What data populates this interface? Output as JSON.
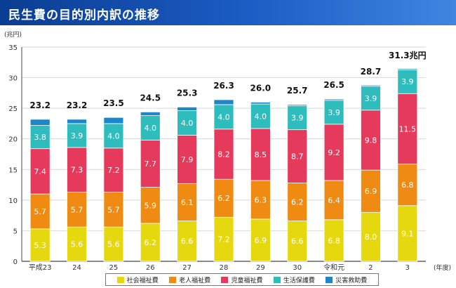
{
  "header": {
    "title": "民生費の目的別内訳の推移"
  },
  "chart_data": {
    "type": "bar",
    "stacked": true,
    "title": "民生費の目的別内訳の推移",
    "ylabel": "(兆円)",
    "xlabel": "(年度)",
    "ylim": [
      0,
      35
    ],
    "yticks": [
      0,
      5,
      10,
      15,
      20,
      25,
      30,
      35
    ],
    "grid": true,
    "categories": [
      "平成23",
      "24",
      "25",
      "26",
      "27",
      "28",
      "29",
      "30",
      "令和元",
      "2",
      "3"
    ],
    "series": [
      {
        "name": "社会福祉費",
        "color": "#e6d80f",
        "label_color": "#ffffff",
        "values": [
          5.3,
          5.6,
          5.6,
          6.2,
          6.6,
          7.2,
          6.9,
          6.6,
          6.8,
          8.0,
          9.1
        ]
      },
      {
        "name": "老人福祉費",
        "color": "#ef8a12",
        "label_color": "#ffffff",
        "values": [
          5.7,
          5.7,
          5.7,
          5.9,
          6.1,
          6.2,
          6.3,
          6.2,
          6.4,
          6.9,
          6.8
        ]
      },
      {
        "name": "児童福祉費",
        "color": "#e63a5c",
        "label_color": "#ffffff",
        "values": [
          7.4,
          7.3,
          7.2,
          7.7,
          7.9,
          8.2,
          8.5,
          8.7,
          9.2,
          9.8,
          11.5
        ]
      },
      {
        "name": "生活保護費",
        "color": "#2fbcbc",
        "label_color": "#ffffff",
        "values": [
          3.8,
          3.9,
          4.0,
          4.0,
          4.0,
          4.0,
          4.0,
          3.9,
          3.9,
          3.9,
          3.9
        ]
      },
      {
        "name": "災害救助費",
        "color": "#1d86c9",
        "label_color": "#ffffff",
        "values": [
          1.0,
          0.7,
          1.0,
          0.6,
          0.6,
          0.8,
          0.3,
          0.2,
          0.2,
          0.1,
          0.0
        ]
      }
    ],
    "totals": [
      "23.2",
      "23.2",
      "23.5",
      "24.5",
      "25.3",
      "26.3",
      "26.0",
      "25.7",
      "26.5",
      "28.7",
      "31.3兆円"
    ],
    "legend_position": "bottom"
  }
}
